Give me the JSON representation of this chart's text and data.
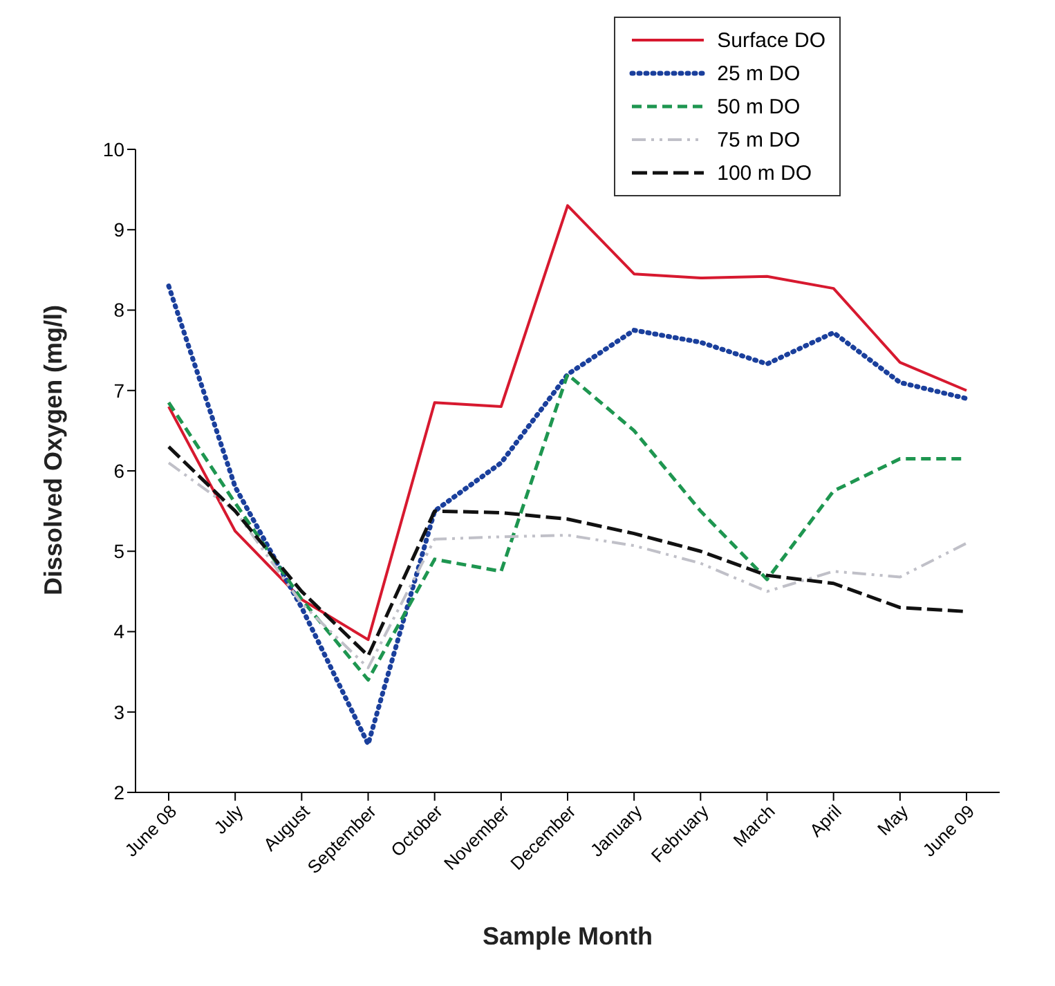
{
  "chart_data": {
    "type": "line",
    "xlabel": "Sample Month",
    "ylabel": "Dissolved Oxygen (mg/l)",
    "categories": [
      "June 08",
      "July",
      "August",
      "September",
      "October",
      "November",
      "December",
      "January",
      "February",
      "March",
      "April",
      "May",
      "June 09"
    ],
    "series": [
      {
        "name": "Surface DO",
        "color": "#d7192f",
        "line_style": "solid",
        "values": [
          6.8,
          5.25,
          4.4,
          3.9,
          6.85,
          6.8,
          9.3,
          8.45,
          8.4,
          8.42,
          8.27,
          7.35,
          7.0
        ]
      },
      {
        "name": "25 m DO",
        "color": "#1a3f9c",
        "line_style": "dotted",
        "values": [
          8.3,
          5.8,
          4.3,
          2.6,
          5.5,
          6.1,
          7.2,
          7.75,
          7.6,
          7.33,
          7.72,
          7.1,
          6.9
        ]
      },
      {
        "name": "50 m DO",
        "color": "#1e9650",
        "line_style": "dashed",
        "values": [
          6.85,
          5.6,
          4.4,
          3.4,
          4.9,
          4.75,
          7.2,
          6.5,
          5.5,
          4.65,
          5.75,
          6.15,
          6.15
        ]
      },
      {
        "name": "75 m DO",
        "color": "#c0c0c8",
        "line_style": "dashdot",
        "values": [
          6.1,
          5.5,
          4.35,
          3.55,
          5.15,
          5.18,
          5.2,
          5.07,
          4.85,
          4.5,
          4.75,
          4.68,
          5.1
        ]
      },
      {
        "name": "100 m DO",
        "color": "#111111",
        "line_style": "longdash",
        "values": [
          6.3,
          5.5,
          4.5,
          3.7,
          5.5,
          5.48,
          5.4,
          5.22,
          5.0,
          4.7,
          4.6,
          4.3,
          4.25
        ]
      }
    ],
    "ylim": [
      2,
      10
    ],
    "yticks": [
      2,
      3,
      4,
      5,
      6,
      7,
      8,
      9,
      10
    ],
    "grid": false,
    "legend": "top right",
    "marker": "none"
  }
}
